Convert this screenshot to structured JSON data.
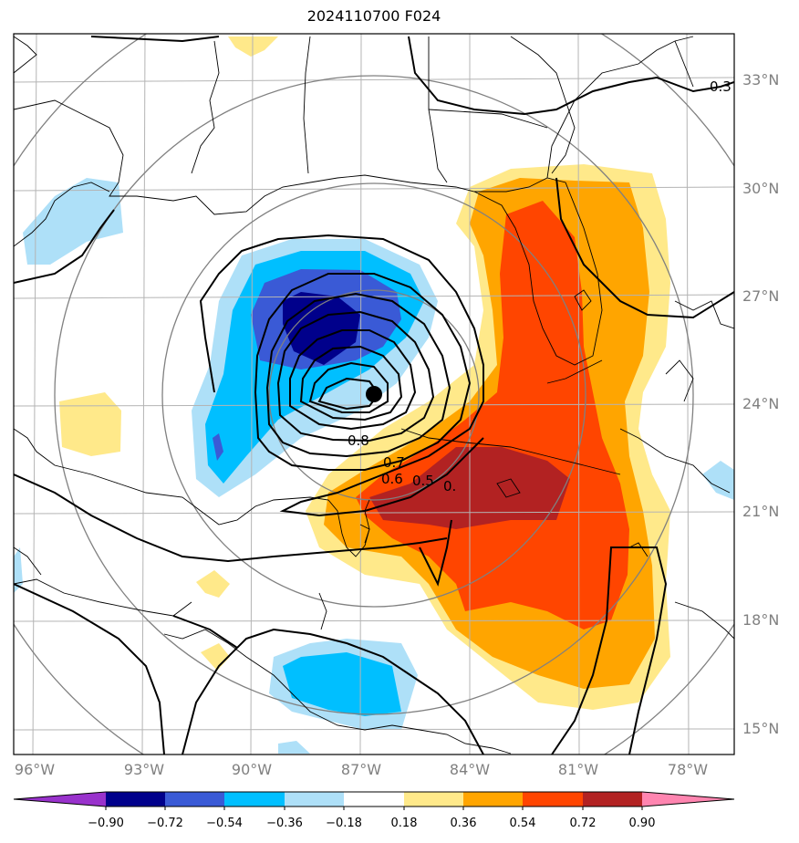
{
  "title": "2024110700 F024",
  "lat_labels": [
    "33°N",
    "30°N",
    "27°N",
    "24°N",
    "21°N",
    "18°N",
    "15°N"
  ],
  "lon_labels": [
    "96°W",
    "93°W",
    "90°W",
    "87°W",
    "84°W",
    "81°W",
    "78°W"
  ],
  "colorbar": {
    "ticks": [
      "−0.90",
      "−0.72",
      "−0.54",
      "−0.36",
      "−0.18",
      "0.18",
      "0.36",
      "0.54",
      "0.72",
      "0.90"
    ],
    "colors": [
      "#9932cc",
      "#00008b",
      "#3a5ad6",
      "#00bfff",
      "#aee0f8",
      "#ffffff",
      "#ffe98a",
      "#ffa500",
      "#ff4500",
      "#b22222",
      "#ff85b0"
    ]
  },
  "contour_labels": [
    "0.8",
    "0.7",
    "0.6",
    "0.5",
    "0.",
    "0.3"
  ],
  "storm_center": {
    "lat": 24.3,
    "lon": -86.5
  }
}
